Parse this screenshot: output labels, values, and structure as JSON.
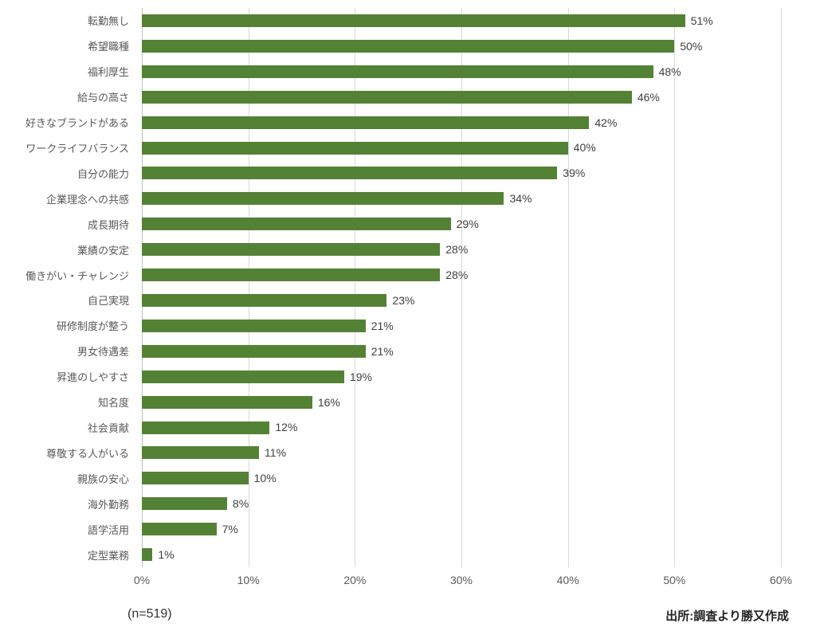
{
  "chart_data": {
    "type": "bar",
    "orientation": "horizontal",
    "title": "",
    "xlabel": "",
    "ylabel": "",
    "categories": [
      "転勤無し",
      "希望職種",
      "福利厚生",
      "給与の高さ",
      "好きなブランドがある",
      "ワークライフバランス",
      "自分の能力",
      "企業理念への共感",
      "成長期待",
      "業績の安定",
      "働きがい・チャレンジ",
      "自己実現",
      "研修制度が整う",
      "男女待遇差",
      "昇進のしやすさ",
      "知名度",
      "社会貢献",
      "尊敬する人がいる",
      "親族の安心",
      "海外勤務",
      "語学活用",
      "定型業務"
    ],
    "values": [
      51,
      50,
      48,
      46,
      42,
      40,
      39,
      34,
      29,
      28,
      28,
      23,
      21,
      21,
      19,
      16,
      12,
      11,
      10,
      8,
      7,
      1
    ],
    "value_labels": [
      "51%",
      "50%",
      "48%",
      "46%",
      "42%",
      "40%",
      "39%",
      "34%",
      "29%",
      "28%",
      "28%",
      "23%",
      "21%",
      "21%",
      "19%",
      "16%",
      "12%",
      "11%",
      "10%",
      "8%",
      "7%",
      "1%"
    ],
    "xlim": [
      0,
      60
    ],
    "x_ticks": [
      {
        "value": 0,
        "label": "0%"
      },
      {
        "value": 10,
        "label": "10%"
      },
      {
        "value": 20,
        "label": "20%"
      },
      {
        "value": 30,
        "label": "30%"
      },
      {
        "value": 40,
        "label": "40%"
      },
      {
        "value": 50,
        "label": "50%"
      },
      {
        "value": 60,
        "label": "60%"
      }
    ],
    "bar_color": "#548235",
    "grid": true,
    "legend": false
  },
  "footer": {
    "sample_size": "(n=519)",
    "source": "出所:調査より勝又作成"
  }
}
